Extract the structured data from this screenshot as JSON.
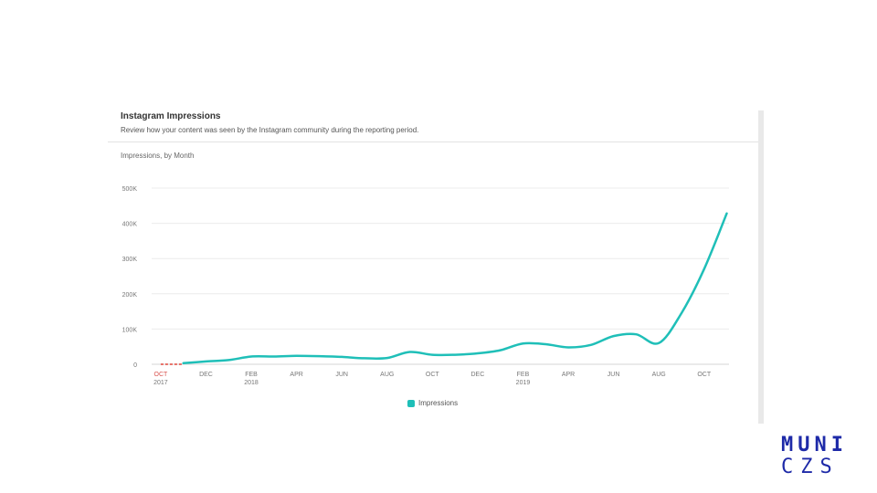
{
  "header": {
    "title": "Instagram Impressions",
    "subtitle": "Review how your content was seen by the Instagram community during the reporting period."
  },
  "chart_label": "Impressions, by Month",
  "legend": {
    "label": "Impressions"
  },
  "logo": {
    "line1": "MUNI",
    "line2": "CZS"
  },
  "colors": {
    "series": "#1fbfb8",
    "dashed": "#e0453a",
    "grid": "#ececec",
    "axis_text": "#777777",
    "logo": "#1e2aa8"
  },
  "chart_data": {
    "type": "line",
    "title": "Impressions, by Month",
    "xlabel": "",
    "ylabel": "",
    "ylim": [
      0,
      500000
    ],
    "yticks": [
      {
        "value": 0,
        "label": "0"
      },
      {
        "value": 100000,
        "label": "100K"
      },
      {
        "value": 200000,
        "label": "200K"
      },
      {
        "value": 300000,
        "label": "300K"
      },
      {
        "value": 400000,
        "label": "400K"
      },
      {
        "value": 500000,
        "label": "500K"
      }
    ],
    "xticks": [
      {
        "t": 0,
        "label": "OCT",
        "sub": "2017",
        "highlight": true
      },
      {
        "t": 2,
        "label": "DEC",
        "sub": ""
      },
      {
        "t": 4,
        "label": "FEB",
        "sub": "2018"
      },
      {
        "t": 6,
        "label": "APR",
        "sub": ""
      },
      {
        "t": 8,
        "label": "JUN",
        "sub": ""
      },
      {
        "t": 10,
        "label": "AUG",
        "sub": ""
      },
      {
        "t": 12,
        "label": "OCT",
        "sub": ""
      },
      {
        "t": 14,
        "label": "DEC",
        "sub": ""
      },
      {
        "t": 16,
        "label": "FEB",
        "sub": "2019"
      },
      {
        "t": 18,
        "label": "APR",
        "sub": ""
      },
      {
        "t": 20,
        "label": "JUN",
        "sub": ""
      },
      {
        "t": 22,
        "label": "AUG",
        "sub": ""
      },
      {
        "t": 24,
        "label": "OCT",
        "sub": ""
      }
    ],
    "xrange": [
      -0.4,
      25.1
    ],
    "series": [
      {
        "name": "Impressions",
        "x": [
          1,
          2,
          3,
          4,
          5,
          6,
          7,
          8,
          9,
          10,
          11,
          12,
          13,
          14,
          15,
          16,
          17,
          18,
          19,
          20,
          21,
          22,
          23,
          24,
          25
        ],
        "values": [
          3000,
          8000,
          12000,
          22000,
          22000,
          24000,
          23000,
          21000,
          17000,
          18000,
          35000,
          27000,
          27000,
          31000,
          40000,
          59000,
          57000,
          48000,
          55000,
          80000,
          85000,
          60000,
          145000,
          270000,
          428000
        ]
      }
    ],
    "dashed_segment": {
      "x": [
        0,
        1
      ],
      "values": [
        0,
        0
      ]
    }
  }
}
